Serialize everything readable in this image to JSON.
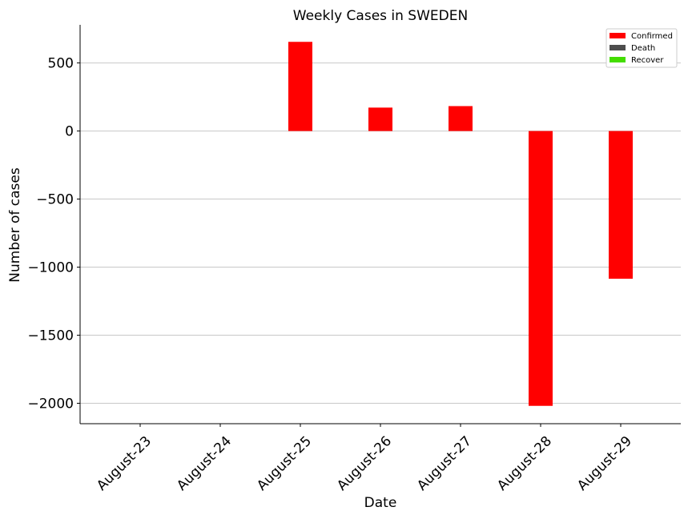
{
  "chart_data": {
    "type": "bar",
    "title": "Weekly Cases in SWEDEN",
    "xlabel": "Date",
    "ylabel": "Number of cases",
    "categories": [
      "August-23",
      "August-24",
      "August-25",
      "August-26",
      "August-27",
      "August-28",
      "August-29"
    ],
    "series": [
      {
        "name": "Confirmed",
        "color": "#ff0000",
        "values": [
          0,
          0,
          655,
          172,
          183,
          -2019,
          -1085
        ]
      },
      {
        "name": "Death",
        "color": "#4d4d4d",
        "values": [
          0,
          0,
          0,
          0,
          0,
          0,
          0
        ]
      },
      {
        "name": "Recover",
        "color": "#44dd00",
        "values": [
          0,
          0,
          0,
          0,
          0,
          0,
          0
        ]
      }
    ],
    "ylim": [
      -2150,
      780
    ],
    "yticks": [
      500,
      0,
      -500,
      -1000,
      -1500,
      -2000
    ],
    "ytick_labels": [
      "500",
      "0",
      "−500",
      "−1000",
      "−1500",
      "−2000"
    ],
    "grid": "y",
    "legend": "top-right"
  }
}
